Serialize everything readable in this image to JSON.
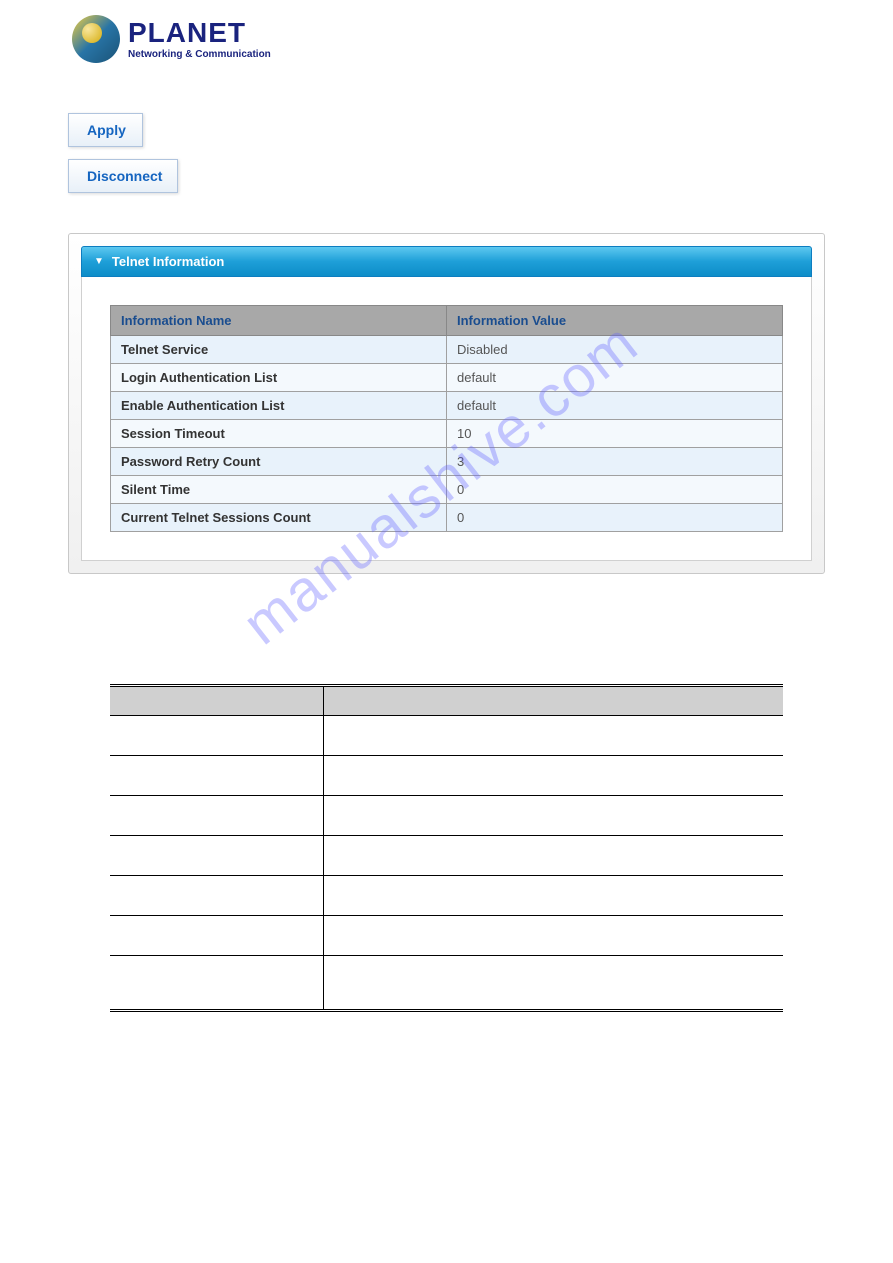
{
  "logo": {
    "main": "PLANET",
    "sub": "Networking & Communication"
  },
  "buttons": {
    "apply": "Apply",
    "disconnect": "Disconnect"
  },
  "panel": {
    "title": "Telnet Information",
    "headers": {
      "name": "Information Name",
      "value": "Information Value"
    },
    "rows": [
      {
        "name": "Telnet Service",
        "value": "Disabled"
      },
      {
        "name": "Login Authentication List",
        "value": "default"
      },
      {
        "name": "Enable Authentication List",
        "value": "default"
      },
      {
        "name": "Session Timeout",
        "value": "10"
      },
      {
        "name": "Password Retry Count",
        "value": "3"
      },
      {
        "name": "Silent Time",
        "value": "0"
      },
      {
        "name": "Current Telnet Sessions Count",
        "value": "0"
      }
    ]
  },
  "watermark": "manualshive.com",
  "colors": {
    "header_gradient_start": "#5dc8f0",
    "header_gradient_end": "#0d8dc8",
    "button_text": "#1565c0",
    "table_header_bg": "#a8a8a8",
    "table_header_text": "#1a4d8f",
    "row_light": "#e8f2fb",
    "row_lighter": "#f4f9fd",
    "logo_text": "#1a237e"
  }
}
